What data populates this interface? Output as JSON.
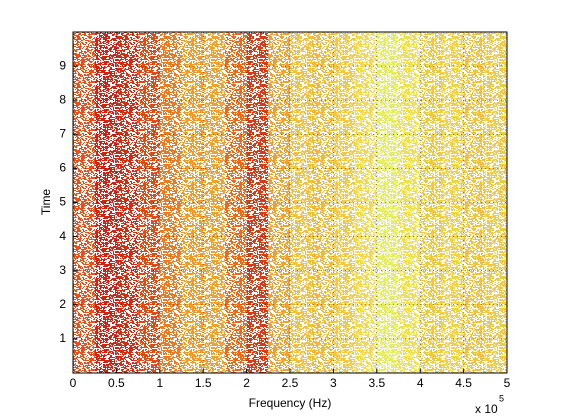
{
  "chart_data": {
    "type": "heatmap",
    "xlabel": "Frequency (Hz)",
    "ylabel": "Time",
    "x_multiplier": "x 10",
    "x_multiplier_exponent": "5",
    "x_bins": [
      0,
      0.25,
      0.5,
      0.75,
      1,
      1.25,
      1.5,
      1.75,
      2,
      2.25,
      2.5,
      2.75,
      3,
      3.25,
      3.5,
      3.75,
      4,
      4.25,
      4.5,
      4.75,
      5
    ],
    "colors": [
      "#e8501a",
      "#d8200f",
      "#d82a10",
      "#e04a15",
      "#ec7a20",
      "#f09a28",
      "#f0a030",
      "#e86a1a",
      "#d83a12",
      "#f0a030",
      "#f4c040",
      "#f2b838",
      "#f4c844",
      "#f4d850",
      "#e4ec60",
      "#f0e050",
      "#f0c840",
      "#f2d048",
      "#f0c040",
      "#f2c848"
    ],
    "xlim": [
      0,
      5
    ],
    "xticks": [
      0,
      0.5,
      1,
      1.5,
      2,
      2.5,
      3,
      3.5,
      4,
      4.5,
      5
    ],
    "ylim": [
      0,
      10
    ],
    "yticks": [
      1,
      2,
      3,
      4,
      5,
      6,
      7,
      8,
      9
    ],
    "grid": true
  }
}
